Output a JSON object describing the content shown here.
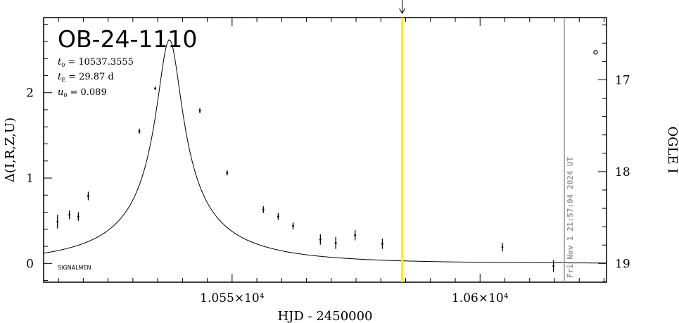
{
  "chart_data": {
    "type": "scatter",
    "title": "OB-24-1110",
    "params": {
      "t0": "= 10537.3555",
      "tE": "= 29.87 d",
      "u0": "= 0.089"
    },
    "params_labels": {
      "t0": "t",
      "t0_sub": "0",
      "tE": "t",
      "tE_sub": "E",
      "u0": "u",
      "u0_sub": "0"
    },
    "xlabel": "HJD - 2450000",
    "ylabel_left": "Δ(I,R,Z,U)",
    "ylabel_right": "OGLE I",
    "x_ticks": [
      {
        "value": 10550,
        "label": "1.055×10⁴"
      },
      {
        "value": 10600,
        "label": "1.06×10⁴"
      }
    ],
    "y_left_ticks": [
      {
        "value": 0,
        "label": "0"
      },
      {
        "value": 1,
        "label": "1"
      },
      {
        "value": 2,
        "label": "2"
      }
    ],
    "y_right_ticks": [
      {
        "value": 17,
        "label": "17"
      },
      {
        "value": 18,
        "label": "18"
      },
      {
        "value": 19,
        "label": "19"
      }
    ],
    "xlim": [
      10512,
      10625.5
    ],
    "ylim_left": [
      -0.22,
      2.88
    ],
    "right_axis_mag_at_left_zero": 19.0,
    "right_axis_mag_per_unit_left": 0.93,
    "data_points": [
      {
        "x": 10514.8,
        "y": 0.49,
        "err": 0.08
      },
      {
        "x": 10517.2,
        "y": 0.57,
        "err": 0.05
      },
      {
        "x": 10519.0,
        "y": 0.55,
        "err": 0.05
      },
      {
        "x": 10521.0,
        "y": 0.79,
        "err": 0.05
      },
      {
        "x": 10531.3,
        "y": 1.55,
        "err": 0.03
      },
      {
        "x": 10534.5,
        "y": 2.05,
        "err": 0.02
      },
      {
        "x": 10543.5,
        "y": 1.79,
        "err": 0.03
      },
      {
        "x": 10549.0,
        "y": 1.06,
        "err": 0.03
      },
      {
        "x": 10556.3,
        "y": 0.63,
        "err": 0.04
      },
      {
        "x": 10559.3,
        "y": 0.55,
        "err": 0.04
      },
      {
        "x": 10562.3,
        "y": 0.44,
        "err": 0.04
      },
      {
        "x": 10567.8,
        "y": 0.28,
        "err": 0.06
      },
      {
        "x": 10570.9,
        "y": 0.24,
        "err": 0.07
      },
      {
        "x": 10574.8,
        "y": 0.33,
        "err": 0.06
      },
      {
        "x": 10580.3,
        "y": 0.23,
        "err": 0.06
      },
      {
        "x": 10584.3,
        "y": 0.34,
        "err": 0.06
      },
      {
        "x": 10604.5,
        "y": 0.19,
        "err": 0.05
      },
      {
        "x": 10614.8,
        "y": -0.03,
        "err": 0.07
      }
    ],
    "open_point": {
      "x": 10623.3,
      "y_mag": 16.7
    },
    "model": "microlensing point-lens fit",
    "current_time_line": {
      "x": 10584.3,
      "color": "#ffee00"
    },
    "date_line": {
      "x": 10617.0,
      "label": "Fri Nov  1 21:57:04 2024 UT",
      "color": "#999999"
    },
    "footer_text": "SIGNALMEN"
  }
}
